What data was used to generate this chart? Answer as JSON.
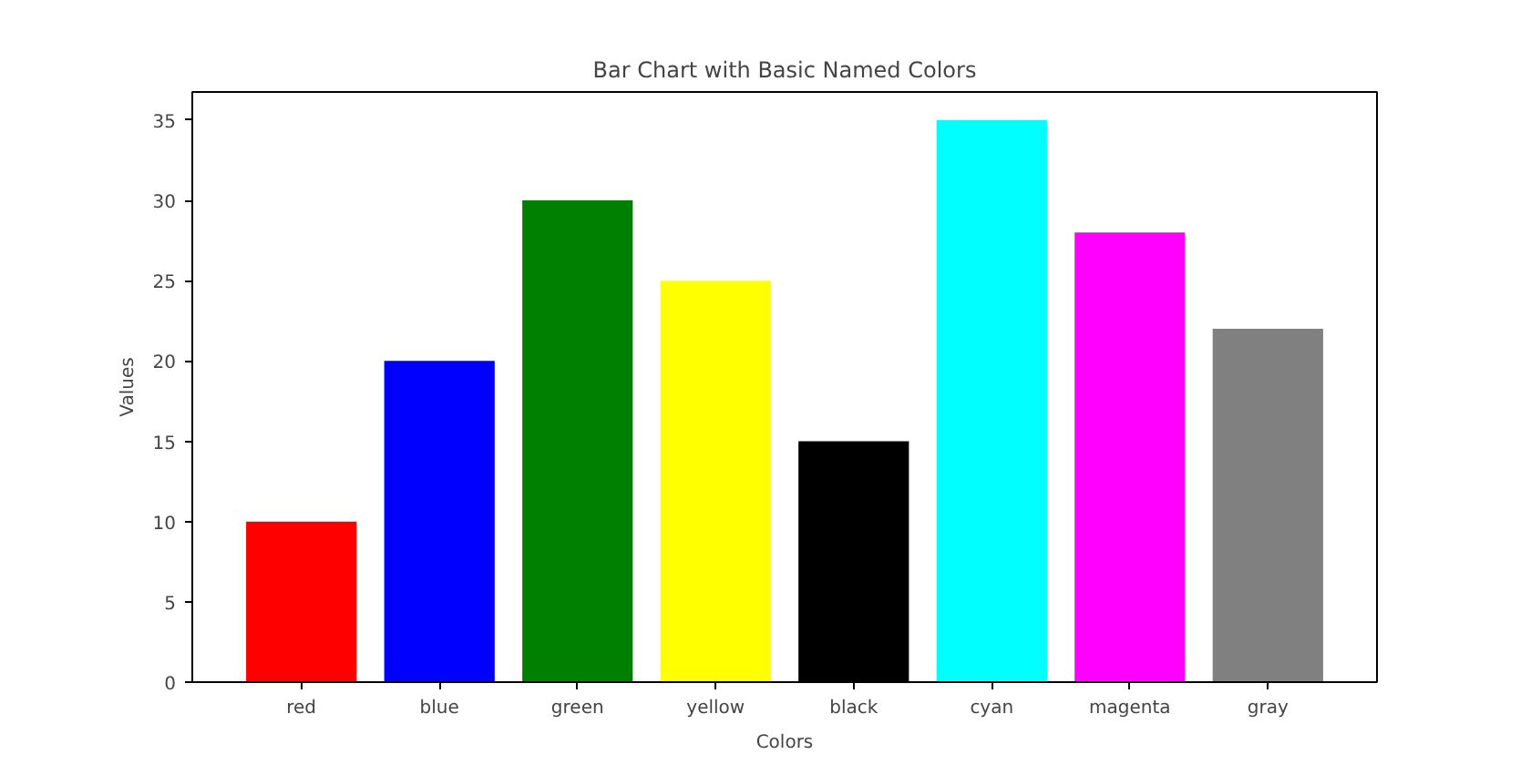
{
  "chart_data": {
    "type": "bar",
    "title": "Bar Chart with Basic Named Colors",
    "xlabel": "Colors",
    "ylabel": "Values",
    "categories": [
      "red",
      "blue",
      "green",
      "yellow",
      "black",
      "cyan",
      "magenta",
      "gray"
    ],
    "values": [
      10,
      20,
      30,
      25,
      15,
      35,
      28,
      22
    ],
    "colors": [
      "#ff0000",
      "#0000ff",
      "#008000",
      "#ffff00",
      "#000000",
      "#00ffff",
      "#ff00ff",
      "#808080"
    ],
    "ylim": [
      0,
      36.75
    ],
    "yticks": [
      0,
      5,
      10,
      15,
      20,
      25,
      30,
      35
    ],
    "grid": false
  }
}
